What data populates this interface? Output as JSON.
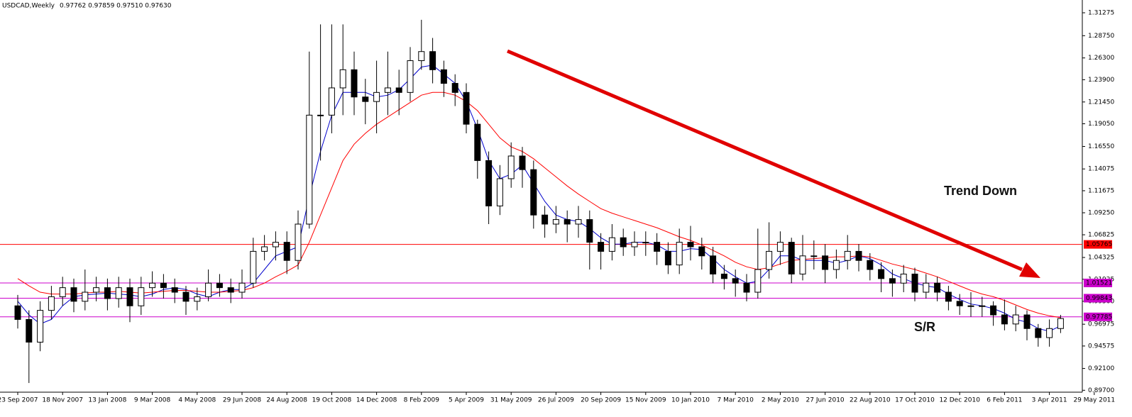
{
  "chart_data": {
    "type": "candlestick",
    "title": "USDCAD,Weekly",
    "subtitle": "0.97762 0.97859 0.97510 0.97630",
    "annotations": [
      "Trend Down",
      "S/R"
    ],
    "categories": [
      "23 Sep 2007",
      null,
      null,
      null,
      "18 Nov 2007",
      null,
      null,
      null,
      "13 Jan 2008",
      null,
      null,
      null,
      "9 Mar 2008",
      null,
      null,
      null,
      "4 May 2008",
      null,
      null,
      null,
      "29 Jun 2008",
      null,
      null,
      null,
      "24 Aug 2008",
      null,
      null,
      null,
      "19 Oct 2008",
      null,
      null,
      null,
      "14 Dec 2008",
      null,
      null,
      null,
      "8 Feb 2009",
      null,
      null,
      null,
      "5 Apr 2009",
      null,
      null,
      null,
      "31 May 2009",
      null,
      null,
      null,
      "26 Jul 2009",
      null,
      null,
      null,
      "20 Sep 2009",
      null,
      null,
      null,
      "15 Nov 2009",
      null,
      null,
      null,
      "10 Jan 2010",
      null,
      null,
      null,
      "7 Mar 2010",
      null,
      null,
      null,
      "2 May 2010",
      null,
      null,
      null,
      "27 Jun 2010",
      null,
      null,
      null,
      "22 Aug 2010",
      null,
      null,
      null,
      "17 Oct 2010",
      null,
      null,
      null,
      "12 Dec 2010",
      null,
      null,
      null,
      "6 Feb 2011",
      null,
      null,
      null,
      "3 Apr 2011",
      null,
      null,
      null,
      "29 May 2011"
    ],
    "open": [
      0.99,
      0.975,
      0.95,
      0.985,
      1.0,
      1.01,
      0.995,
      1.005,
      1.01,
      0.998,
      1.01,
      0.99,
      1.01,
      1.015,
      1.01,
      1.005,
      0.995,
      1.0,
      1.015,
      1.01,
      1.005,
      1.015,
      1.05,
      1.055,
      1.06,
      1.04,
      1.08,
      1.2,
      1.2,
      1.23,
      1.25,
      1.22,
      1.215,
      1.225,
      1.23,
      1.225,
      1.26,
      1.27,
      1.25,
      1.235,
      1.225,
      1.19,
      1.15,
      1.1,
      1.13,
      1.155,
      1.14,
      1.09,
      1.08,
      1.085,
      1.08,
      1.085,
      1.06,
      1.05,
      1.065,
      1.055,
      1.06,
      1.06,
      1.05,
      1.035,
      1.06,
      1.055,
      1.045,
      1.025,
      1.02,
      1.015,
      1.005,
      1.03,
      1.05,
      1.06,
      1.025,
      1.045,
      1.045,
      1.03,
      1.04,
      1.05,
      1.04,
      1.03,
      1.02,
      1.015,
      1.025,
      1.005,
      1.015,
      1.005,
      0.995,
      0.99,
      0.99,
      0.99,
      0.98,
      0.97,
      0.98,
      0.965,
      0.955,
      0.965,
      null,
      null,
      null
    ],
    "high": [
      1.002,
      0.985,
      0.995,
      1.012,
      1.022,
      1.02,
      1.03,
      1.022,
      1.02,
      1.022,
      1.02,
      1.022,
      1.028,
      1.025,
      1.02,
      1.012,
      1.01,
      1.03,
      1.025,
      1.02,
      1.03,
      1.065,
      1.068,
      1.072,
      1.072,
      1.095,
      1.27,
      1.3,
      1.3,
      1.3,
      1.27,
      1.24,
      1.26,
      1.27,
      1.25,
      1.275,
      1.305,
      1.285,
      1.26,
      1.245,
      1.235,
      1.195,
      1.16,
      1.145,
      1.17,
      1.165,
      1.15,
      1.1,
      1.1,
      1.095,
      1.1,
      1.095,
      1.07,
      1.08,
      1.075,
      1.072,
      1.072,
      1.07,
      1.06,
      1.075,
      1.078,
      1.065,
      1.055,
      1.035,
      1.03,
      1.025,
      1.075,
      1.082,
      1.072,
      1.065,
      1.068,
      1.062,
      1.058,
      1.052,
      1.068,
      1.058,
      1.048,
      1.038,
      1.03,
      1.035,
      1.032,
      1.025,
      1.022,
      1.012,
      1.003,
      1.005,
      1.0,
      0.995,
      0.997,
      0.99,
      0.985,
      0.97,
      0.975,
      0.98,
      null,
      null,
      null
    ],
    "low": [
      0.965,
      0.905,
      0.94,
      0.975,
      0.99,
      0.983,
      0.985,
      0.995,
      0.985,
      0.988,
      0.972,
      0.98,
      1.0,
      0.998,
      0.993,
      0.98,
      0.985,
      0.995,
      1.0,
      0.993,
      0.998,
      1.01,
      1.04,
      1.04,
      1.025,
      1.03,
      1.075,
      1.15,
      1.18,
      1.2,
      1.2,
      1.19,
      1.18,
      1.2,
      1.2,
      1.215,
      1.25,
      1.235,
      1.22,
      1.21,
      1.18,
      1.13,
      1.08,
      1.09,
      1.12,
      1.12,
      1.075,
      1.065,
      1.07,
      1.06,
      1.065,
      1.03,
      1.03,
      1.04,
      1.045,
      1.045,
      1.045,
      1.035,
      1.025,
      1.025,
      1.04,
      1.03,
      1.015,
      1.008,
      1.0,
      0.995,
      0.998,
      1.02,
      1.035,
      1.015,
      1.018,
      1.03,
      1.015,
      1.02,
      1.03,
      1.028,
      1.018,
      1.005,
      1.0,
      1.005,
      0.995,
      0.998,
      0.995,
      0.985,
      0.98,
      0.978,
      0.978,
      0.968,
      0.963,
      0.962,
      0.952,
      0.945,
      0.945,
      0.96,
      null,
      null,
      null
    ],
    "close": [
      0.975,
      0.95,
      0.985,
      1.0,
      1.01,
      0.995,
      1.005,
      1.01,
      0.998,
      1.01,
      0.99,
      1.01,
      1.015,
      1.01,
      1.005,
      0.995,
      1.0,
      1.015,
      1.01,
      1.005,
      1.015,
      1.05,
      1.055,
      1.06,
      1.04,
      1.08,
      1.2,
      1.2,
      1.23,
      1.25,
      1.22,
      1.215,
      1.225,
      1.23,
      1.225,
      1.26,
      1.27,
      1.25,
      1.235,
      1.225,
      1.19,
      1.15,
      1.1,
      1.13,
      1.155,
      1.14,
      1.09,
      1.08,
      1.085,
      1.08,
      1.085,
      1.06,
      1.05,
      1.065,
      1.055,
      1.06,
      1.06,
      1.05,
      1.035,
      1.06,
      1.055,
      1.045,
      1.025,
      1.02,
      1.015,
      1.005,
      1.03,
      1.05,
      1.06,
      1.025,
      1.045,
      1.045,
      1.03,
      1.04,
      1.05,
      1.04,
      1.03,
      1.02,
      1.015,
      1.025,
      1.005,
      1.015,
      1.005,
      0.995,
      0.99,
      0.99,
      0.99,
      0.98,
      0.97,
      0.98,
      0.965,
      0.955,
      0.965,
      0.976,
      null,
      null,
      null
    ],
    "up_color": "#ffffff",
    "down_color": "#000000",
    "ma_lines": [
      {
        "color": "#0000cc",
        "values": [
          0.995,
          0.98,
          0.97,
          0.975,
          0.99,
          1.0,
          1.002,
          1.003,
          1.004,
          1.003,
          1.002,
          1.0,
          1.003,
          1.008,
          1.01,
          1.008,
          1.003,
          1.0,
          1.005,
          1.008,
          1.008,
          1.015,
          1.03,
          1.045,
          1.05,
          1.055,
          1.11,
          1.16,
          1.2,
          1.225,
          1.225,
          1.225,
          1.22,
          1.222,
          1.228,
          1.24,
          1.253,
          1.255,
          1.245,
          1.235,
          1.215,
          1.185,
          1.15,
          1.13,
          1.135,
          1.145,
          1.125,
          1.105,
          1.09,
          1.085,
          1.083,
          1.075,
          1.065,
          1.058,
          1.058,
          1.06,
          1.06,
          1.057,
          1.05,
          1.05,
          1.053,
          1.052,
          1.042,
          1.03,
          1.022,
          1.015,
          1.017,
          1.03,
          1.045,
          1.045,
          1.04,
          1.04,
          1.04,
          1.037,
          1.04,
          1.045,
          1.042,
          1.035,
          1.025,
          1.02,
          1.015,
          1.012,
          1.01,
          1.003,
          0.997,
          0.992,
          0.99,
          0.987,
          0.982,
          0.975,
          0.972,
          0.965,
          0.962,
          0.968,
          null,
          null,
          null
        ]
      },
      {
        "color": "#ff0000",
        "values": [
          1.02,
          1.012,
          1.005,
          1.003,
          1.003,
          1.003,
          1.004,
          1.005,
          1.005,
          1.006,
          1.005,
          1.004,
          1.005,
          1.006,
          1.007,
          1.007,
          1.006,
          1.005,
          1.005,
          1.006,
          1.007,
          1.01,
          1.015,
          1.022,
          1.028,
          1.035,
          1.06,
          1.09,
          1.12,
          1.15,
          1.168,
          1.18,
          1.19,
          1.198,
          1.206,
          1.214,
          1.222,
          1.225,
          1.225,
          1.222,
          1.215,
          1.205,
          1.19,
          1.175,
          1.165,
          1.16,
          1.152,
          1.142,
          1.132,
          1.122,
          1.113,
          1.105,
          1.097,
          1.092,
          1.088,
          1.084,
          1.08,
          1.076,
          1.071,
          1.066,
          1.062,
          1.057,
          1.051,
          1.045,
          1.038,
          1.033,
          1.03,
          1.032,
          1.036,
          1.04,
          1.041,
          1.042,
          1.043,
          1.044,
          1.044,
          1.045,
          1.044,
          1.04,
          1.036,
          1.033,
          1.03,
          1.026,
          1.022,
          1.017,
          1.012,
          1.007,
          1.003,
          1.0,
          0.996,
          0.991,
          0.986,
          0.982,
          0.979,
          0.977,
          null,
          null,
          null
        ]
      }
    ],
    "levels": [
      {
        "value": 1.05765,
        "color": "#ff0000"
      },
      {
        "value": 1.01521,
        "color": "#cc00cc"
      },
      {
        "value": 0.99843,
        "color": "#cc00cc"
      },
      {
        "value": 0.97785,
        "color": "#cc00cc"
      }
    ],
    "ylim": [
      0.8949,
      1.3268
    ],
    "yticks": [
      1.31275,
      {
        "value": 1.2875,
        "label": "1.28750"
      },
      {
        "value": 1.263,
        "label": "1.26300"
      },
      {
        "value": 1.239,
        "label": "1.23900"
      },
      {
        "value": 1.2145,
        "label": "1.21450"
      },
      {
        "value": 1.1905,
        "label": "1.19050"
      },
      {
        "value": 1.1655,
        "label": "1.16550"
      },
      1.14075,
      1.11675,
      {
        "value": 1.0925,
        "label": "1.09250"
      },
      1.06825,
      1.04325,
      1.01925,
      {
        "value": 0.995,
        "label": "0.99500"
      },
      0.96975,
      0.94575,
      {
        "value": 0.921,
        "label": "0.92100"
      },
      {
        "value": 0.897,
        "label": "0.89700"
      }
    ]
  }
}
